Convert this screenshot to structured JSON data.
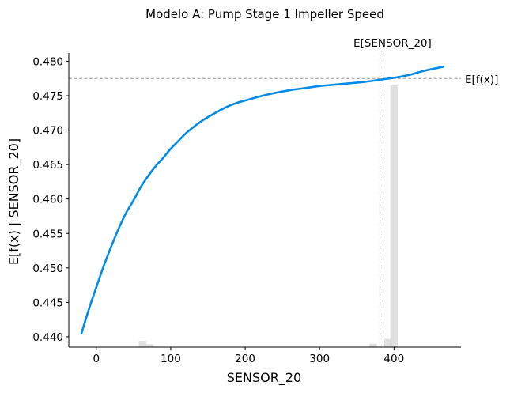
{
  "chart_data": {
    "type": "line",
    "title": "Modelo A: Pump Stage 1 Impeller Speed",
    "xlabel": "SENSOR_20",
    "ylabel": "E[f(x) | SENSOR_20]",
    "xlim": [
      -37,
      490
    ],
    "ylim": [
      0.4385,
      0.4812
    ],
    "xticks": [
      0,
      100,
      200,
      300,
      400
    ],
    "xtick_labels": [
      "0",
      "100",
      "200",
      "300",
      "400"
    ],
    "yticks": [
      0.44,
      0.445,
      0.45,
      0.455,
      0.46,
      0.465,
      0.47,
      0.475,
      0.48
    ],
    "ytick_labels": [
      "0.440",
      "0.445",
      "0.450",
      "0.455",
      "0.460",
      "0.465",
      "0.470",
      "0.475",
      "0.480"
    ],
    "grid": false,
    "line_color": "#008be6",
    "series": [
      {
        "x": [
          -20,
          -10,
          0,
          10,
          20,
          30,
          40,
          50,
          60,
          70,
          80,
          90,
          100,
          110,
          120,
          130,
          140,
          150,
          160,
          170,
          180,
          190,
          200,
          220,
          240,
          260,
          280,
          300,
          320,
          340,
          360,
          380,
          400,
          420,
          440,
          466
        ],
        "y": [
          0.4405,
          0.444,
          0.4472,
          0.4503,
          0.4531,
          0.4557,
          0.458,
          0.4598,
          0.4618,
          0.4634,
          0.4648,
          0.466,
          0.4673,
          0.4684,
          0.4695,
          0.4704,
          0.4712,
          0.4719,
          0.4725,
          0.4731,
          0.4736,
          0.474,
          0.4743,
          0.4749,
          0.4754,
          0.4758,
          0.4761,
          0.4764,
          0.4766,
          0.4768,
          0.477,
          0.4773,
          0.4776,
          0.478,
          0.4786,
          0.4792
        ]
      }
    ],
    "expected_value": {
      "label": "E[f(x)]",
      "y": 0.4775,
      "color": "#999999"
    },
    "expected_feature": {
      "label": "E[SENSOR_20]",
      "x": 381,
      "color": "#999999"
    },
    "histogram": {
      "color": "#cccccc",
      "bin_width": 10,
      "bins": [
        {
          "x0": 57,
          "height": 0.024
        },
        {
          "x0": 67,
          "height": 0.011
        },
        {
          "x0": 367,
          "height": 0.013
        },
        {
          "x0": 387,
          "height": 0.031
        },
        {
          "x0": 395,
          "height": 1.0
        }
      ]
    }
  }
}
